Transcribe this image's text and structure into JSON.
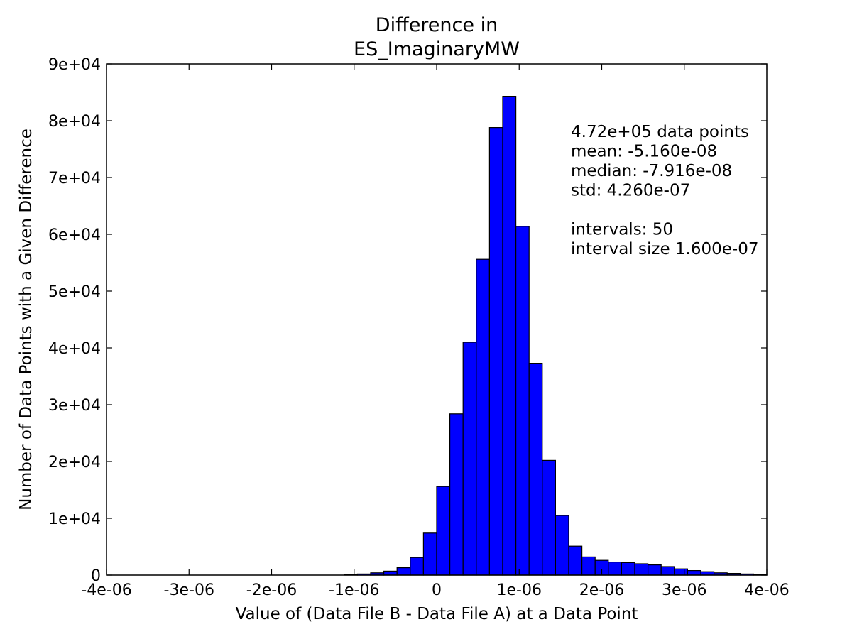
{
  "chart_data": {
    "type": "bar",
    "title_lines": [
      "Difference in",
      "ES_ImaginaryMW"
    ],
    "xlabel": "Value of (Data File B - Data File A) at a Data Point",
    "ylabel": "Number of Data Points with a Given Difference",
    "xlim": [
      -4e-06,
      4e-06
    ],
    "ylim": [
      0,
      90000
    ],
    "x_ticks": [
      {
        "value": -4e-06,
        "label": "-4e-06"
      },
      {
        "value": -3e-06,
        "label": "-3e-06"
      },
      {
        "value": -2e-06,
        "label": "-2e-06"
      },
      {
        "value": -1e-06,
        "label": "-1e-06"
      },
      {
        "value": 0,
        "label": "0"
      },
      {
        "value": 1e-06,
        "label": "1e-06"
      },
      {
        "value": 2e-06,
        "label": "2e-06"
      },
      {
        "value": 3e-06,
        "label": "3e-06"
      },
      {
        "value": 4e-06,
        "label": "4e-06"
      }
    ],
    "y_ticks": [
      {
        "value": 0,
        "label": "0"
      },
      {
        "value": 10000,
        "label": "1e+04"
      },
      {
        "value": 20000,
        "label": "2e+04"
      },
      {
        "value": 30000,
        "label": "3e+04"
      },
      {
        "value": 40000,
        "label": "4e+04"
      },
      {
        "value": 50000,
        "label": "5e+04"
      },
      {
        "value": 60000,
        "label": "6e+04"
      },
      {
        "value": 70000,
        "label": "7e+04"
      },
      {
        "value": 80000,
        "label": "8e+04"
      },
      {
        "value": 90000,
        "label": "9e+04"
      }
    ],
    "bar_color": "#0000ff",
    "bin_start": -4e-06,
    "bin_width": 1.6e-07,
    "values": [
      0,
      0,
      0,
      0,
      0,
      0,
      0,
      0,
      0,
      0,
      0,
      0,
      0,
      0,
      0,
      0,
      0,
      0,
      100,
      200,
      400,
      700,
      1300,
      3100,
      7400,
      15600,
      28400,
      41000,
      55600,
      78800,
      84300,
      61400,
      37300,
      20200,
      10500,
      5100,
      3200,
      2600,
      2300,
      2200,
      2000,
      1800,
      1500,
      1100,
      800,
      600,
      400,
      300,
      200,
      100
    ],
    "annotation_lines": [
      "4.72e+05 data points",
      "mean: -5.160e-08",
      "median: -7.916e-08",
      "std: 4.260e-07",
      "",
      "intervals: 50",
      "interval size 1.600e-07"
    ]
  }
}
